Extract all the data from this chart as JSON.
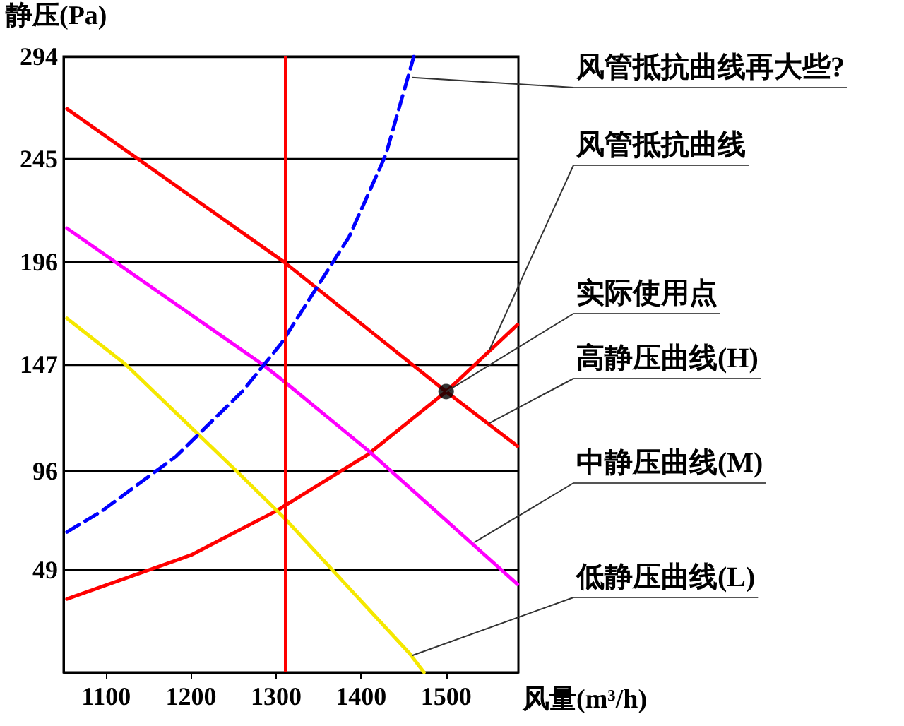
{
  "chart_data": {
    "type": "line",
    "xlabel": "风量(m³/h)",
    "ylabel": "静压(Pa)",
    "xlim": [
      1050,
      1585
    ],
    "xticks": [
      1100,
      1200,
      1300,
      1400,
      1500
    ],
    "ylim": [
      0,
      294
    ],
    "yticks": [
      49,
      96,
      147,
      196,
      245,
      294
    ],
    "grid": "y",
    "marker": "none",
    "series": [
      {
        "color": "#ff0000",
        "x": [
          1054,
          1200,
          1300,
          1408,
          1500,
          1584
        ],
        "values": [
          35,
          56,
          77,
          104,
          134,
          166
        ]
      },
      {
        "color": "#ff0000",
        "x": [
          1054,
          1309,
          1500,
          1584
        ],
        "values": [
          269,
          196,
          134,
          108
        ]
      },
      {
        "color": "#ff00ff",
        "x": [
          1054,
          1284,
          1309,
          1408,
          1584
        ],
        "values": [
          212,
          147,
          139,
          106,
          42
        ]
      },
      {
        "color": "#f5e800",
        "x": [
          1054,
          1123,
          1251,
          1309,
          1457,
          1474
        ],
        "values": [
          169,
          147,
          97,
          74,
          9,
          0
        ]
      },
      {
        "color": "#0000ff",
        "line_style": "dashed",
        "x": [
          1054,
          1095,
          1182,
          1260,
          1306,
          1386,
          1429,
          1462
        ],
        "values": [
          67,
          77,
          103,
          134,
          157,
          208,
          247,
          294
        ]
      },
      {
        "type": "scatter",
        "marker": "circle",
        "color": "#000000",
        "x": [
          1500
        ],
        "values": [
          134
        ]
      }
    ],
    "ref_lines": [
      {
        "axis": "x",
        "value": 1311,
        "color": "#ff0000"
      }
    ],
    "annotations": [
      {
        "text": "风管抵抗曲线再大些?",
        "x": 1460,
        "y": 284
      },
      {
        "text": "风管抵抗曲线",
        "x": 1551,
        "y": 154
      },
      {
        "text": "实际使用点",
        "x": 1500,
        "y": 134
      },
      {
        "text": "高静压曲线(H)",
        "x": 1551,
        "y": 119
      },
      {
        "text": "中静压曲线(M)",
        "x": 1533,
        "y": 62
      },
      {
        "text": "低静压曲线(L)",
        "x": 1460,
        "y": 8
      }
    ]
  }
}
